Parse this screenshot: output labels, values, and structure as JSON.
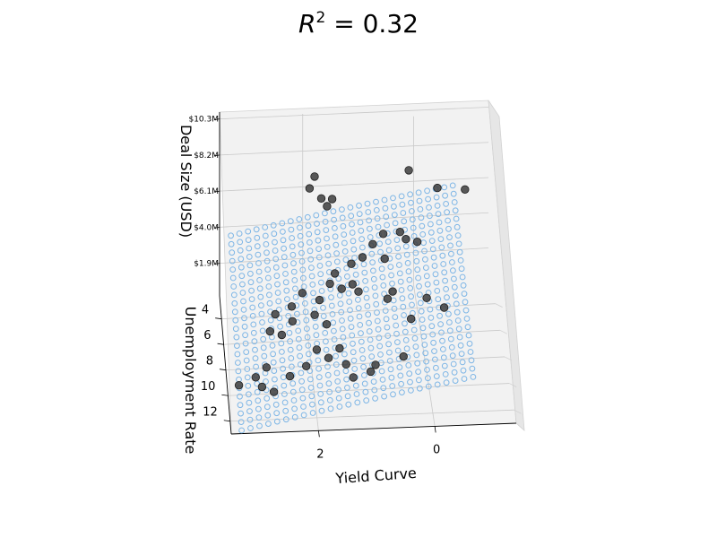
{
  "chart_data": {
    "type": "scatter",
    "title_base": "R",
    "title_exp": "2",
    "title_rest": " = 0.32",
    "xlabel": "Yield Curve",
    "ylabel": "Unemployment Rate",
    "zlabel": "Deal Size (USD)",
    "x_ticks": [
      {
        "value": 2,
        "label": "2"
      },
      {
        "value": 0,
        "label": "0"
      }
    ],
    "y_ticks": [
      {
        "value": 4,
        "label": "4"
      },
      {
        "value": 6,
        "label": "6"
      },
      {
        "value": 8,
        "label": "8"
      },
      {
        "value": 10,
        "label": "10"
      },
      {
        "value": 12,
        "label": "12"
      }
    ],
    "z_ticks": [
      {
        "value": 1.9,
        "label": "$1.9M"
      },
      {
        "value": 4.0,
        "label": "$4.0M"
      },
      {
        "value": 6.1,
        "label": "$6.1M"
      },
      {
        "value": 8.2,
        "label": "$8.2M"
      },
      {
        "value": 10.3,
        "label": "$10.3M"
      }
    ],
    "xlim": [
      3.5,
      -1.4
    ],
    "ylim": [
      2.2,
      13.0
    ],
    "zlim": [
      0,
      10.7
    ],
    "grid": true,
    "plane": {
      "intercept": 1.4,
      "coef_x": -0.7,
      "coef_y": 0.45
    },
    "plane_color": "#7eb6e6",
    "point_color": "#3d3d3d",
    "points": [
      {
        "x": 1.8,
        "y": 2.7,
        "z": 7.3
      },
      {
        "x": 0.1,
        "y": 2.6,
        "z": 7.6
      },
      {
        "x": 1.9,
        "y": 3.1,
        "z": 6.9
      },
      {
        "x": 1.7,
        "y": 3.5,
        "z": 6.6
      },
      {
        "x": 1.5,
        "y": 3.3,
        "z": 6.4
      },
      {
        "x": 1.6,
        "y": 3.6,
        "z": 6.2
      },
      {
        "x": -0.4,
        "y": 3.0,
        "z": 6.8
      },
      {
        "x": -0.9,
        "y": 2.9,
        "z": 6.6
      },
      {
        "x": 0.8,
        "y": 4.2,
        "z": 4.3
      },
      {
        "x": 0.6,
        "y": 3.8,
        "z": 4.6
      },
      {
        "x": 0.3,
        "y": 3.8,
        "z": 4.7
      },
      {
        "x": 0.2,
        "y": 4.0,
        "z": 4.4
      },
      {
        "x": 0.0,
        "y": 4.1,
        "z": 4.3
      },
      {
        "x": 0.6,
        "y": 4.6,
        "z": 3.7
      },
      {
        "x": 1.2,
        "y": 4.8,
        "z": 3.6
      },
      {
        "x": 1.0,
        "y": 4.7,
        "z": 3.9
      },
      {
        "x": 1.5,
        "y": 5.0,
        "z": 3.2
      },
      {
        "x": 1.6,
        "y": 5.4,
        "z": 2.9
      },
      {
        "x": 1.2,
        "y": 5.5,
        "z": 2.9
      },
      {
        "x": 1.1,
        "y": 5.7,
        "z": 2.6
      },
      {
        "x": 2.1,
        "y": 5.8,
        "z": 2.7
      },
      {
        "x": 1.4,
        "y": 5.7,
        "z": 2.8
      },
      {
        "x": 1.8,
        "y": 6.0,
        "z": 2.4
      },
      {
        "x": 2.3,
        "y": 6.3,
        "z": 2.3
      },
      {
        "x": 2.6,
        "y": 6.6,
        "z": 2.1
      },
      {
        "x": 2.3,
        "y": 6.8,
        "z": 1.8
      },
      {
        "x": 1.9,
        "y": 6.5,
        "z": 1.9
      },
      {
        "x": 1.7,
        "y": 7.0,
        "z": 1.7
      },
      {
        "x": 2.7,
        "y": 7.0,
        "z": 1.4
      },
      {
        "x": 2.5,
        "y": 7.3,
        "z": 1.4
      },
      {
        "x": 0.6,
        "y": 6.2,
        "z": 2.5
      },
      {
        "x": -0.1,
        "y": 6.0,
        "z": 2.3
      },
      {
        "x": 0.2,
        "y": 6.7,
        "z": 1.6
      },
      {
        "x": -0.4,
        "y": 6.3,
        "z": 1.9
      },
      {
        "x": 0.5,
        "y": 5.9,
        "z": 2.7
      },
      {
        "x": 1.9,
        "y": 7.9,
        "z": 0.9
      },
      {
        "x": 1.5,
        "y": 8.0,
        "z": 1.0
      },
      {
        "x": 1.7,
        "y": 8.2,
        "z": 0.6
      },
      {
        "x": 1.4,
        "y": 8.5,
        "z": 0.4
      },
      {
        "x": 2.1,
        "y": 8.5,
        "z": 0.4
      },
      {
        "x": 2.8,
        "y": 8.6,
        "z": 0.5
      },
      {
        "x": 2.4,
        "y": 9.1,
        "z": 0.3
      },
      {
        "x": 3.0,
        "y": 9.2,
        "z": 0.4
      },
      {
        "x": 2.9,
        "y": 9.7,
        "z": 0.2
      },
      {
        "x": 3.3,
        "y": 9.5,
        "z": 0.2
      },
      {
        "x": 2.7,
        "y": 10.0,
        "z": 0.1
      },
      {
        "x": 0.4,
        "y": 8.7,
        "z": 0.9
      },
      {
        "x": 0.9,
        "y": 9.0,
        "z": 0.7
      },
      {
        "x": 1.3,
        "y": 9.4,
        "z": 0.3
      },
      {
        "x": 1.0,
        "y": 9.5,
        "z": 0.7
      }
    ]
  }
}
